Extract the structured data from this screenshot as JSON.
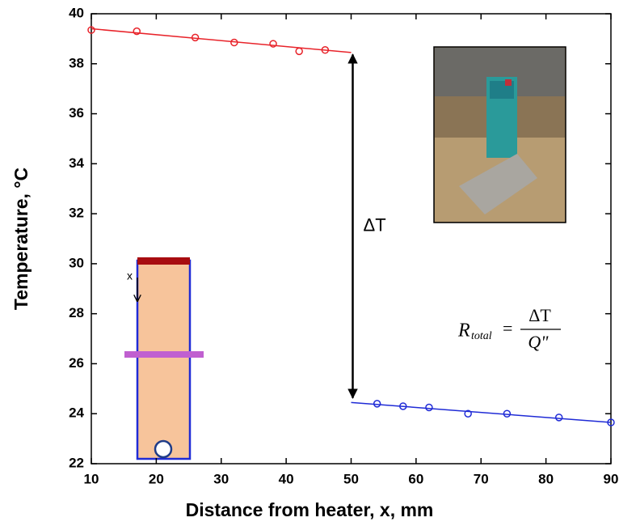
{
  "chart_data": {
    "type": "scatter",
    "xlabel": "Distance from heater, x, mm",
    "ylabel": "Temperature, °C",
    "xlim": [
      10,
      90
    ],
    "xticks": [
      10,
      20,
      30,
      40,
      50,
      60,
      70,
      80,
      90
    ],
    "ylim": [
      22,
      40
    ],
    "yticks": [
      22,
      24,
      26,
      28,
      30,
      32,
      34,
      36,
      38,
      40
    ],
    "series": [
      {
        "color": "#e8232a",
        "x": [
          10,
          17,
          26,
          32,
          38,
          42,
          46
        ],
        "values": [
          39.35,
          39.3,
          39.05,
          38.85,
          38.8,
          38.5,
          38.55
        ],
        "fit_x": [
          10,
          50
        ],
        "fit_values": [
          39.4,
          38.45
        ]
      },
      {
        "color": "#1f2bd6",
        "x": [
          54,
          58,
          62,
          68,
          74,
          82,
          90
        ],
        "values": [
          24.4,
          24.3,
          24.25,
          24.0,
          24.0,
          23.85,
          23.65
        ],
        "fit_x": [
          50,
          90
        ],
        "fit_values": [
          24.45,
          23.65
        ]
      }
    ],
    "delta_arrow": {
      "label": "ΔT",
      "x": 50,
      "y": [
        24.5,
        38.5
      ]
    },
    "formula": {
      "symbol": "R",
      "subscript": "total",
      "equals": "=",
      "numerator": "ΔT",
      "denominator": "Q\""
    },
    "schematic_label": "x"
  }
}
